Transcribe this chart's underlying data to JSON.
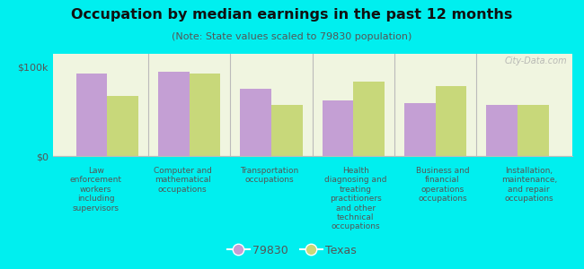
{
  "title": "Occupation by median earnings in the past 12 months",
  "subtitle": "(Note: State values scaled to 79830 population)",
  "background_outer": "#00efef",
  "background_inner": "#f0f5e0",
  "categories": [
    "Law\nenforcement\nworkers\nincluding\nsupervisors",
    "Computer and\nmathematical\noccupations",
    "Transportation\noccupations",
    "Health\ndiagnosing and\ntreating\npractitioners\nand other\ntechnical\noccupations",
    "Business and\nfinancial\noperations\noccupations",
    "Installation,\nmaintenance,\nand repair\noccupations"
  ],
  "values_79830": [
    93000,
    95000,
    76000,
    63000,
    60000,
    57000
  ],
  "values_texas": [
    68000,
    93000,
    57000,
    84000,
    79000,
    58000
  ],
  "color_79830": "#c49fd4",
  "color_texas": "#c8d87a",
  "ylim": [
    0,
    115000
  ],
  "yticks": [
    0,
    100000
  ],
  "ytick_labels": [
    "$0",
    "$100k"
  ],
  "legend_79830": "79830",
  "legend_texas": "Texas",
  "watermark": "City-Data.com"
}
